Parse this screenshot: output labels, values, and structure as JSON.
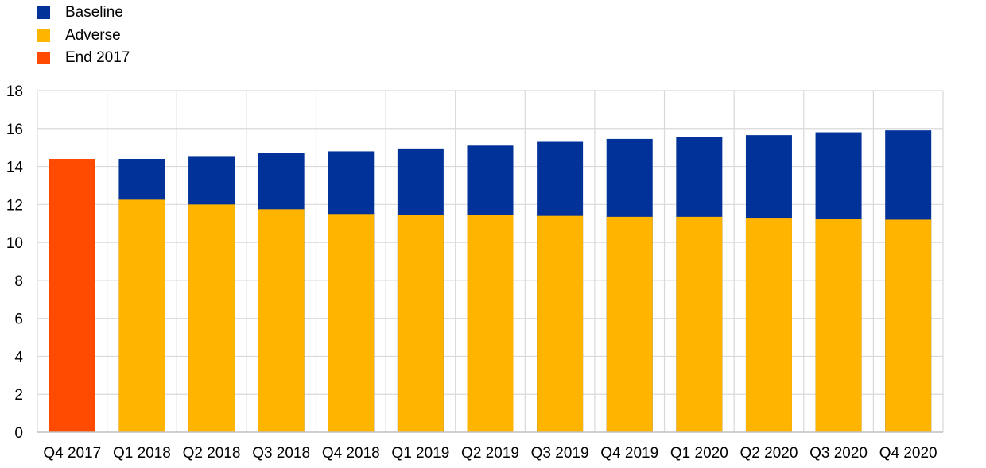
{
  "chart_data": {
    "type": "bar",
    "title": "",
    "xlabel": "",
    "ylabel": "",
    "ylim": [
      0,
      18
    ],
    "yticks": [
      0,
      2,
      4,
      6,
      8,
      10,
      12,
      14,
      16,
      18
    ],
    "grid": true,
    "legend_position": "top-left",
    "categories": [
      "Q4 2017",
      "Q1 2018",
      "Q2 2018",
      "Q3 2018",
      "Q4 2018",
      "Q1 2019",
      "Q2 2019",
      "Q3 2019",
      "Q4 2019",
      "Q1 2020",
      "Q2 2020",
      "Q3 2020",
      "Q4 2020"
    ],
    "series": [
      {
        "name": "Baseline",
        "color": "#003299",
        "values": [
          null,
          14.4,
          14.55,
          14.7,
          14.8,
          14.95,
          15.1,
          15.3,
          15.45,
          15.55,
          15.65,
          15.8,
          15.9
        ]
      },
      {
        "name": "Adverse",
        "color": "#FFB400",
        "values": [
          null,
          12.25,
          12.0,
          11.75,
          11.5,
          11.45,
          11.45,
          11.4,
          11.35,
          11.35,
          11.3,
          11.25,
          11.2
        ]
      },
      {
        "name": "End 2017",
        "color": "#FF4B00",
        "values": [
          14.4,
          null,
          null,
          null,
          null,
          null,
          null,
          null,
          null,
          null,
          null,
          null,
          null
        ]
      }
    ]
  }
}
